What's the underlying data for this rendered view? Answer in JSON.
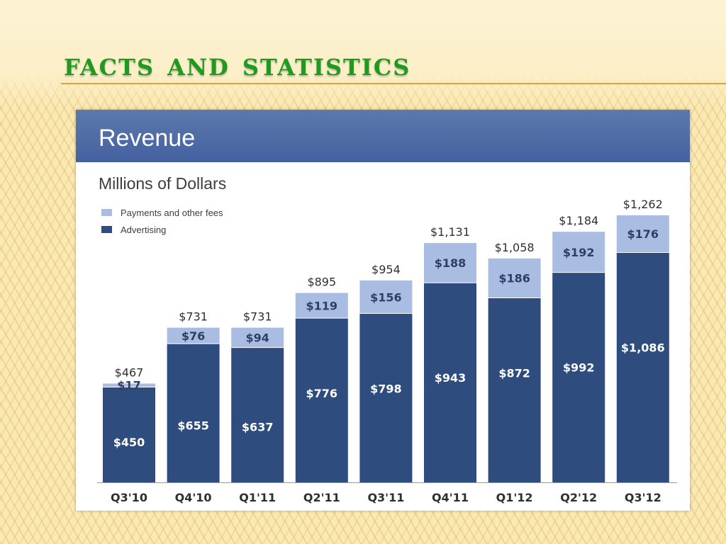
{
  "slide": {
    "title": "Facts and Statistics"
  },
  "colors": {
    "advertising": "#2e4c7d",
    "payments": "#a9bde3",
    "header": "#4b68a4"
  },
  "chart_data": {
    "type": "bar",
    "stacked": true,
    "title": "Revenue",
    "subtitle": "Millions of Dollars",
    "legend_position": "top-left",
    "categories": [
      "Q3'10",
      "Q4'10",
      "Q1'11",
      "Q2'11",
      "Q3'11",
      "Q4'11",
      "Q1'12",
      "Q2'12",
      "Q3'12"
    ],
    "series": [
      {
        "name": "Advertising",
        "values": [
          450,
          655,
          637,
          776,
          798,
          943,
          872,
          992,
          1086
        ],
        "labels": [
          "$450",
          "$655",
          "$637",
          "$776",
          "$798",
          "$943",
          "$872",
          "$992",
          "$1,086"
        ]
      },
      {
        "name": "Payments and other fees",
        "values": [
          17,
          76,
          94,
          119,
          156,
          188,
          186,
          192,
          176
        ],
        "labels": [
          "$17",
          "$76",
          "$94",
          "$119",
          "$156",
          "$188",
          "$186",
          "$192",
          "$176"
        ]
      }
    ],
    "legend_order": [
      "Payments and other fees",
      "Advertising"
    ],
    "totals": [
      467,
      731,
      731,
      895,
      954,
      1131,
      1058,
      1184,
      1262
    ],
    "total_labels": [
      "$467",
      "$731",
      "$731",
      "$895",
      "$954",
      "$1,131",
      "$1,058",
      "$1,184",
      "$1,262"
    ],
    "ylim": [
      0,
      1300
    ],
    "grid": false
  }
}
